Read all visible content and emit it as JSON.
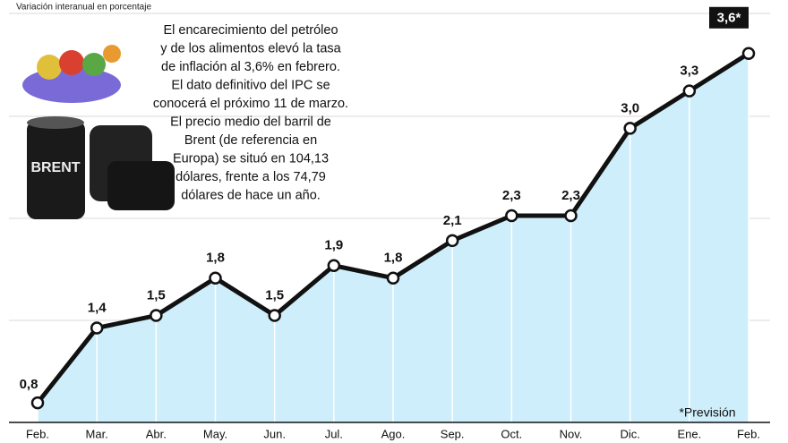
{
  "chart_data": {
    "type": "line",
    "subtitle": "Variación interanual en porcentaje",
    "categories": [
      "Feb.",
      "Mar.",
      "Abr.",
      "May.",
      "Jun.",
      "Jul.",
      "Ago.",
      "Sep.",
      "Oct.",
      "Nov.",
      "Dic.",
      "Ene.",
      "Feb."
    ],
    "values": [
      0.8,
      1.4,
      1.5,
      1.8,
      1.5,
      1.9,
      1.8,
      2.1,
      2.3,
      2.3,
      3.0,
      3.3,
      3.6
    ],
    "value_labels": [
      "0,8",
      "1,4",
      "1,5",
      "1,8",
      "1,5",
      "1,9",
      "1,8",
      "2,1",
      "2,3",
      "2,3",
      "3,0",
      "3,3",
      "3,6*"
    ],
    "color": "#111111",
    "area_color": "#cdeefa",
    "ylim": [
      0.6,
      4
    ],
    "annotation": [
      "El encarecimiento del petróleo",
      "y de los alimentos elevó la tasa",
      "de inflación al 3,6% en febrero.",
      "El dato definitivo del IPC se",
      "conocerá el próximo 11 de marzo.",
      "El precio medio del barril de",
      "Brent  (de referencia en",
      "Europa) se situó en 104,13",
      "dólares, frente a los 74,79",
      "dólares de hace un año."
    ],
    "image_text": "BRENT",
    "note": "*Previsión"
  }
}
